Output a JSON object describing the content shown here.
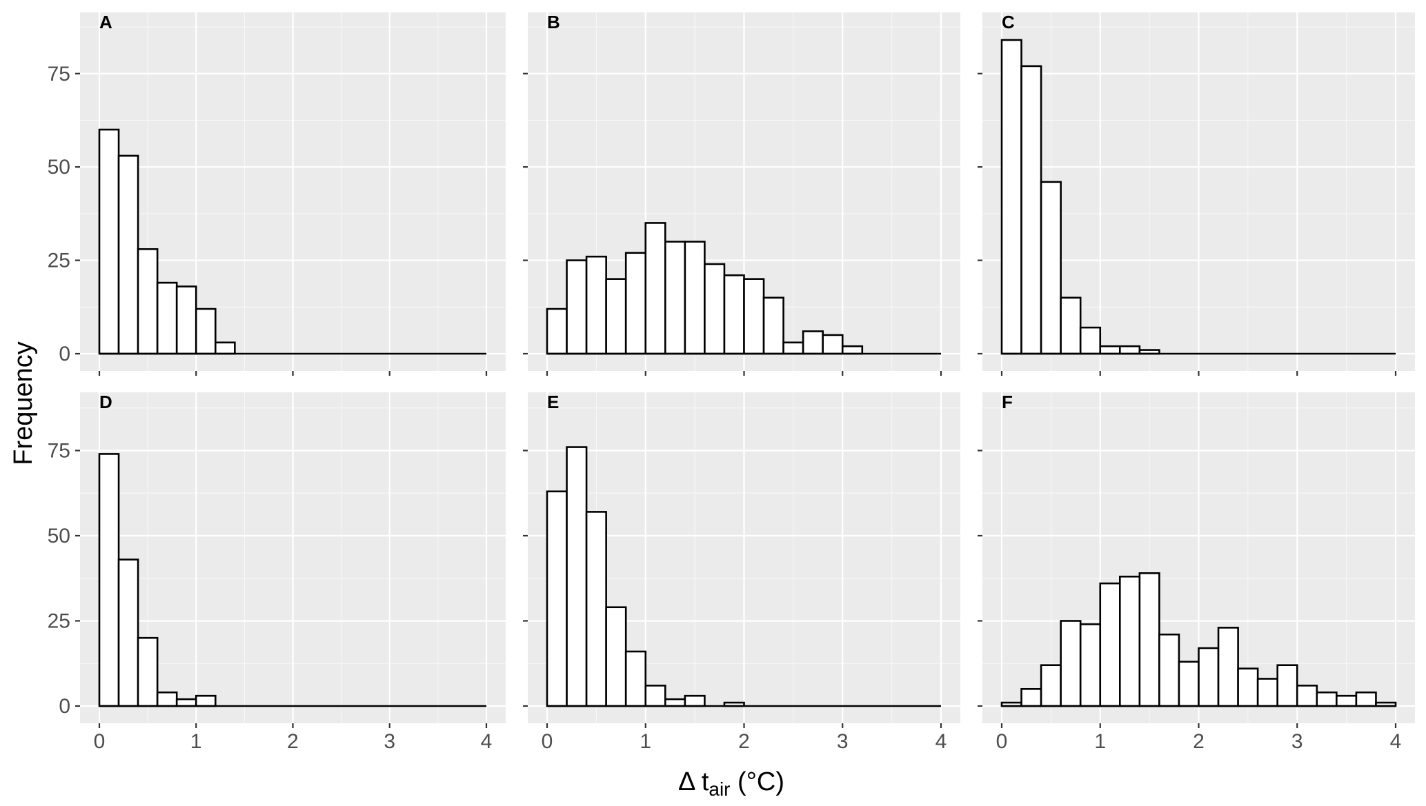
{
  "figure": {
    "ylabel": "Frequency",
    "xlabel_main": "Δ t",
    "xlabel_sub": "air",
    "xlabel_unit": " (°C)"
  },
  "chart_data": [
    {
      "type": "bar",
      "panel": "A",
      "bin_width": 0.2,
      "bin_starts": [
        0.0,
        0.2,
        0.4,
        0.6,
        0.8,
        1.0,
        1.2
      ],
      "values": [
        60,
        53,
        28,
        19,
        18,
        12,
        3
      ],
      "xlim": [
        0,
        4
      ],
      "ylim": [
        0,
        84
      ],
      "xticks": [
        "0",
        "1",
        "2",
        "3",
        "4"
      ],
      "yticks": [
        "0",
        "25",
        "50",
        "75"
      ]
    },
    {
      "type": "bar",
      "panel": "B",
      "bin_width": 0.2,
      "bin_starts": [
        0.0,
        0.2,
        0.4,
        0.6,
        0.8,
        1.0,
        1.2,
        1.4,
        1.6,
        1.8,
        2.0,
        2.2,
        2.4,
        2.6,
        2.8,
        3.0
      ],
      "values": [
        12,
        25,
        26,
        20,
        27,
        35,
        30,
        30,
        24,
        21,
        20,
        15,
        3,
        6,
        5,
        2
      ],
      "xlim": [
        0,
        4
      ],
      "ylim": [
        0,
        84
      ],
      "xticks": [
        "0",
        "1",
        "2",
        "3",
        "4"
      ],
      "yticks": [
        "0",
        "25",
        "50",
        "75"
      ]
    },
    {
      "type": "bar",
      "panel": "C",
      "bin_width": 0.2,
      "bin_starts": [
        0.0,
        0.2,
        0.4,
        0.6,
        0.8,
        1.0,
        1.2,
        1.4
      ],
      "values": [
        84,
        77,
        46,
        15,
        7,
        2,
        2,
        1
      ],
      "xlim": [
        0,
        4
      ],
      "ylim": [
        0,
        84
      ],
      "xticks": [
        "0",
        "1",
        "2",
        "3",
        "4"
      ],
      "yticks": [
        "0",
        "25",
        "50",
        "75"
      ]
    },
    {
      "type": "bar",
      "panel": "D",
      "bin_width": 0.2,
      "bin_starts": [
        0.0,
        0.2,
        0.4,
        0.6,
        0.8,
        1.0
      ],
      "values": [
        74,
        43,
        20,
        4,
        2,
        3
      ],
      "xlim": [
        0,
        4
      ],
      "ylim": [
        0,
        84
      ],
      "xticks": [
        "0",
        "1",
        "2",
        "3",
        "4"
      ],
      "yticks": [
        "0",
        "25",
        "50",
        "75"
      ]
    },
    {
      "type": "bar",
      "panel": "E",
      "bin_width": 0.2,
      "bin_starts": [
        0.0,
        0.2,
        0.4,
        0.6,
        0.8,
        1.0,
        1.2,
        1.4,
        1.6,
        1.8
      ],
      "values": [
        63,
        76,
        57,
        29,
        16,
        6,
        2,
        3,
        0,
        1
      ],
      "xlim": [
        0,
        4
      ],
      "ylim": [
        0,
        84
      ],
      "xticks": [
        "0",
        "1",
        "2",
        "3",
        "4"
      ],
      "yticks": [
        "0",
        "25",
        "50",
        "75"
      ]
    },
    {
      "type": "bar",
      "panel": "F",
      "bin_width": 0.2,
      "bin_starts": [
        0.0,
        0.2,
        0.4,
        0.6,
        0.8,
        1.0,
        1.2,
        1.4,
        1.6,
        1.8,
        2.0,
        2.2,
        2.4,
        2.6,
        2.8,
        3.0,
        3.2,
        3.4,
        3.6,
        3.8
      ],
      "values": [
        1,
        5,
        12,
        25,
        24,
        36,
        38,
        39,
        21,
        13,
        17,
        23,
        11,
        8,
        12,
        6,
        4,
        3,
        4,
        1
      ],
      "xlim": [
        0,
        4
      ],
      "ylim": [
        0,
        84
      ],
      "xticks": [
        "0",
        "1",
        "2",
        "3",
        "4"
      ],
      "yticks": [
        "0",
        "25",
        "50",
        "75"
      ]
    }
  ]
}
